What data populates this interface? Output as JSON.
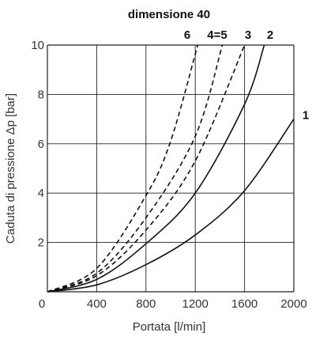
{
  "chart_data": {
    "type": "line",
    "title": "dimensione 40",
    "xlabel": "Portata [l/min]",
    "ylabel": "Caduta di pressione Δp [bar]",
    "xlim": [
      0,
      2000
    ],
    "ylim": [
      0,
      10
    ],
    "xticks": [
      "0",
      "400",
      "800",
      "1200",
      "1600",
      "2000"
    ],
    "yticks": [
      "2",
      "4",
      "6",
      "8",
      "10"
    ],
    "grid": true,
    "series": [
      {
        "name": "1",
        "style": "solid",
        "x": [
          0,
          400,
          800,
          1200,
          1600,
          2000
        ],
        "y": [
          0,
          0.28,
          1.1,
          2.3,
          4.1,
          7.0
        ]
      },
      {
        "name": "2",
        "style": "solid",
        "x": [
          0,
          400,
          800,
          1200,
          1600,
          1760
        ],
        "y": [
          0,
          0.5,
          1.95,
          4.0,
          7.6,
          10.0
        ]
      },
      {
        "name": "3",
        "style": "dashed",
        "x": [
          0,
          400,
          800,
          1200,
          1600
        ],
        "y": [
          0,
          0.65,
          2.5,
          5.3,
          10.0
        ]
      },
      {
        "name": "4=5",
        "style": "dashed",
        "x": [
          0,
          400,
          800,
          1200,
          1420
        ],
        "y": [
          0,
          0.75,
          3.0,
          6.3,
          10.0
        ]
      },
      {
        "name": "6",
        "style": "dashed",
        "x": [
          0,
          400,
          800,
          1000,
          1220
        ],
        "y": [
          0,
          0.95,
          3.9,
          6.1,
          10.0
        ]
      }
    ],
    "curve_labels": [
      {
        "text": "1",
        "series": "1"
      },
      {
        "text": "2",
        "series": "2"
      },
      {
        "text": "3",
        "series": "3"
      },
      {
        "text": "4=5",
        "series": "4=5"
      },
      {
        "text": "6",
        "series": "6"
      }
    ]
  }
}
